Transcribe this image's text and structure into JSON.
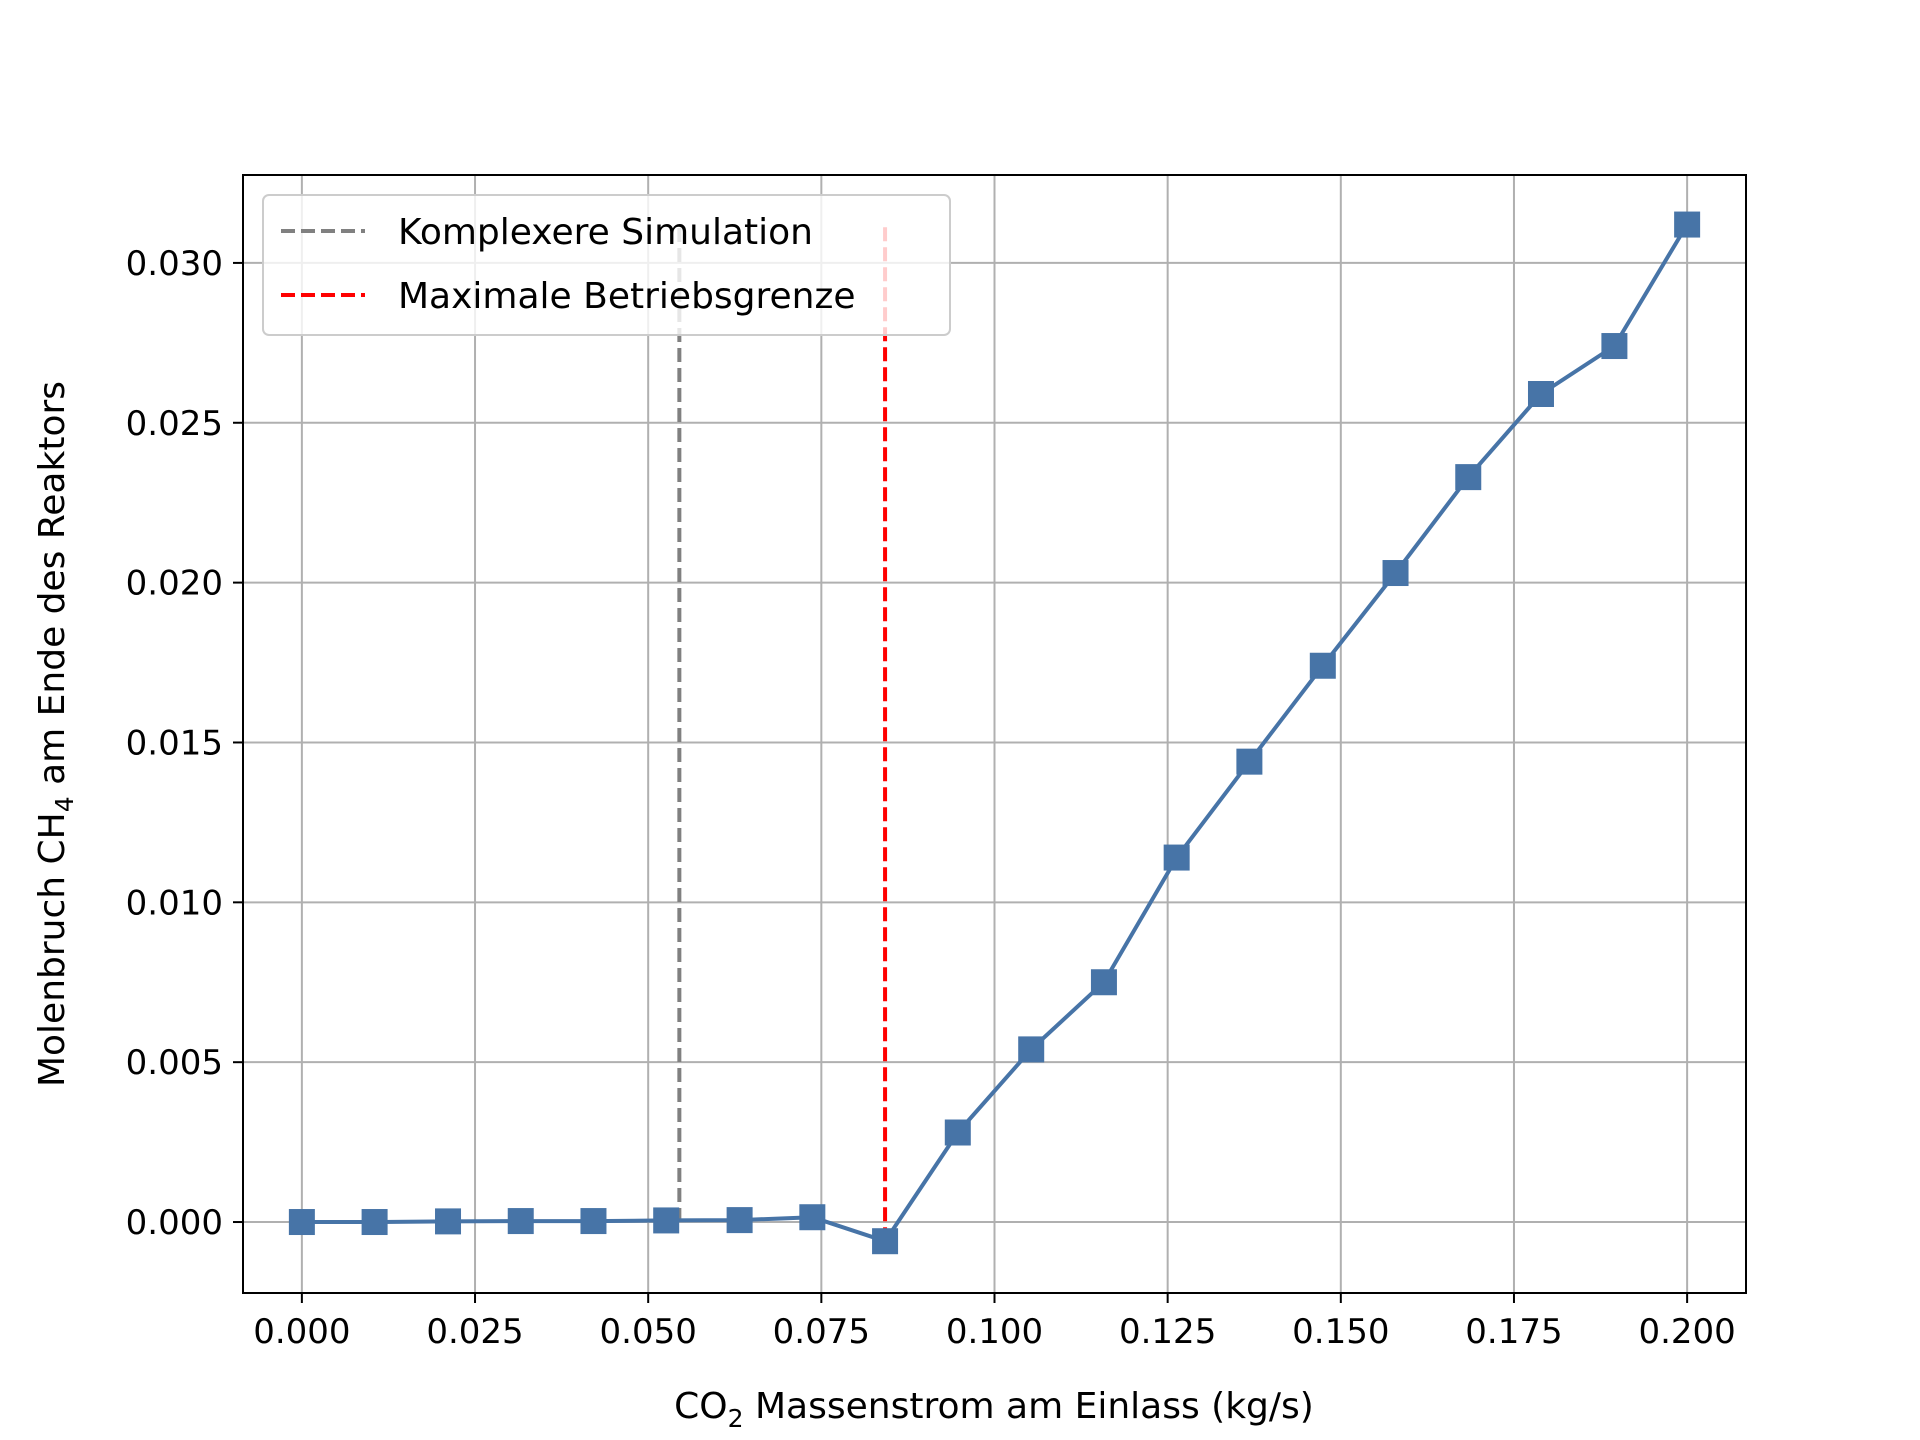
{
  "chart_data": {
    "type": "line",
    "title": "",
    "xlabel": {
      "prefix": "CO",
      "subscript": "2",
      "suffix": " Massenstrom am Einlass (kg/s)"
    },
    "ylabel": {
      "prefix": "Molenbruch CH",
      "subscript": "4",
      "suffix": " am Ende des Reaktors"
    },
    "xlim": [
      -0.0085,
      0.2085
    ],
    "ylim": [
      -0.00222,
      0.03275
    ],
    "xticks": [
      0.0,
      0.025,
      0.05,
      0.075,
      0.1,
      0.125,
      0.15,
      0.175,
      0.2
    ],
    "xtick_labels": [
      "0.000",
      "0.025",
      "0.050",
      "0.075",
      "0.100",
      "0.125",
      "0.150",
      "0.175",
      "0.200"
    ],
    "yticks": [
      0.0,
      0.005,
      0.01,
      0.015,
      0.02,
      0.025,
      0.03
    ],
    "ytick_labels": [
      "0.000",
      "0.005",
      "0.010",
      "0.015",
      "0.020",
      "0.025",
      "0.030"
    ],
    "grid": true,
    "legend_position": "top-left",
    "series": [
      {
        "marker": "square",
        "color": "#4774a7",
        "x": [
          0.0,
          0.0105,
          0.0211,
          0.0316,
          0.0421,
          0.0526,
          0.0632,
          0.0737,
          0.0842,
          0.0947,
          0.1053,
          0.1158,
          0.1263,
          0.1368,
          0.1474,
          0.1579,
          0.1684,
          0.1789,
          0.1895,
          0.2
        ],
        "y": [
          0.0,
          0.0,
          2e-05,
          3e-05,
          3e-05,
          5e-05,
          6e-05,
          0.00015,
          -0.0006,
          0.0028,
          0.0054,
          0.0075,
          0.0114,
          0.0144,
          0.0174,
          0.0203,
          0.0233,
          0.0259,
          0.0274,
          0.0312
        ]
      }
    ],
    "vlines": [
      {
        "name": "Komplexere Simulation",
        "x": 0.0545,
        "y_range": [
          0.0,
          0.0312
        ],
        "color": "#808080",
        "style": "dashed"
      },
      {
        "name": "Maximale Betriebsgrenze",
        "x": 0.0842,
        "y_range": [
          -0.0006,
          0.0312
        ],
        "color": "#ff0000",
        "style": "dashed"
      }
    ]
  }
}
